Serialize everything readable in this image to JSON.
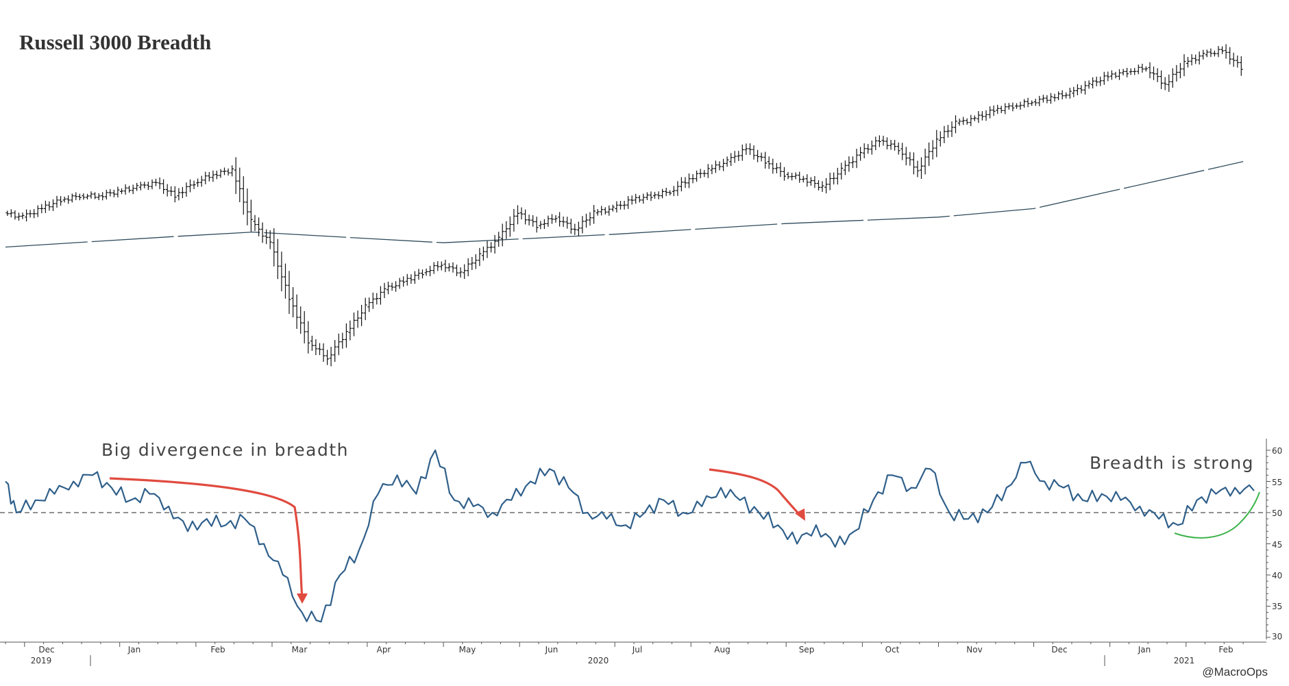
{
  "chart_data": [
    {
      "type": "line",
      "panel": "price",
      "title": "Russell 3000 Breadth",
      "series": [
        {
          "style": "ohlc-bars",
          "color": "#111111",
          "points": [
            [
              "2019-11-25",
              100
            ],
            [
              "2019-12-02",
              99
            ],
            [
              "2019-12-09",
              101
            ],
            [
              "2019-12-16",
              103
            ],
            [
              "2019-12-23",
              104
            ],
            [
              "2019-12-30",
              104
            ],
            [
              "2020-01-06",
              105
            ],
            [
              "2020-01-13",
              106
            ],
            [
              "2020-01-20",
              107
            ],
            [
              "2020-01-27",
              104
            ],
            [
              "2020-02-03",
              107
            ],
            [
              "2020-02-10",
              109
            ],
            [
              "2020-02-17",
              110
            ],
            [
              "2020-02-24",
              98
            ],
            [
              "2020-03-02",
              93
            ],
            [
              "2020-03-09",
              80
            ],
            [
              "2020-03-16",
              70
            ],
            [
              "2020-03-23",
              66
            ],
            [
              "2020-03-30",
              72
            ],
            [
              "2020-04-06",
              78
            ],
            [
              "2020-04-13",
              82
            ],
            [
              "2020-04-20",
              84
            ],
            [
              "2020-04-27",
              86
            ],
            [
              "2020-05-04",
              88
            ],
            [
              "2020-05-11",
              86
            ],
            [
              "2020-05-18",
              90
            ],
            [
              "2020-05-25",
              94
            ],
            [
              "2020-06-01",
              100
            ],
            [
              "2020-06-08",
              97
            ],
            [
              "2020-06-15",
              99
            ],
            [
              "2020-06-22",
              96
            ],
            [
              "2020-06-29",
              100
            ],
            [
              "2020-07-06",
              101
            ],
            [
              "2020-07-13",
              103
            ],
            [
              "2020-07-20",
              104
            ],
            [
              "2020-07-27",
              105
            ],
            [
              "2020-08-03",
              108
            ],
            [
              "2020-08-10",
              110
            ],
            [
              "2020-08-17",
              112
            ],
            [
              "2020-08-24",
              115
            ],
            [
              "2020-08-31",
              112
            ],
            [
              "2020-09-07",
              109
            ],
            [
              "2020-09-14",
              108
            ],
            [
              "2020-09-21",
              106
            ],
            [
              "2020-09-28",
              110
            ],
            [
              "2020-10-05",
              114
            ],
            [
              "2020-10-12",
              117
            ],
            [
              "2020-10-19",
              115
            ],
            [
              "2020-10-26",
              110
            ],
            [
              "2020-11-02",
              117
            ],
            [
              "2020-11-09",
              121
            ],
            [
              "2020-11-16",
              122
            ],
            [
              "2020-11-23",
              124
            ],
            [
              "2020-11-30",
              125
            ],
            [
              "2020-12-07",
              126
            ],
            [
              "2020-12-14",
              127
            ],
            [
              "2020-12-21",
              128
            ],
            [
              "2020-12-28",
              130
            ],
            [
              "2021-01-04",
              132
            ],
            [
              "2021-01-11",
              133
            ],
            [
              "2021-01-18",
              134
            ],
            [
              "2021-01-25",
              130
            ],
            [
              "2021-02-01",
              135
            ],
            [
              "2021-02-08",
              137
            ],
            [
              "2021-02-15",
              138
            ],
            [
              "2021-02-22",
              134
            ]
          ]
        },
        {
          "style": "dashed-moving-average",
          "color": "#2d4a5a",
          "points": [
            [
              "2019-11-25",
              92
            ],
            [
              "2020-01-27",
              94.5
            ],
            [
              "2020-02-24",
              95.5
            ],
            [
              "2020-04-06",
              94
            ],
            [
              "2020-05-04",
              93
            ],
            [
              "2020-07-06",
              95
            ],
            [
              "2020-09-07",
              97.5
            ],
            [
              "2020-11-02",
              99
            ],
            [
              "2020-12-07",
              101
            ],
            [
              "2021-01-04",
              105
            ],
            [
              "2021-02-22",
              112
            ]
          ]
        }
      ]
    },
    {
      "type": "line",
      "panel": "breadth",
      "ylim": [
        30,
        61
      ],
      "yticks": [
        "60",
        "55",
        "50",
        "45",
        "40",
        "35",
        "30"
      ],
      "reference_line": {
        "value": 50,
        "style": "dashed"
      },
      "series": [
        {
          "color": "#2f5f8a",
          "points": [
            [
              "2019-11-25",
              55
            ],
            [
              "2019-11-29",
              50
            ],
            [
              "2019-12-06",
              52
            ],
            [
              "2019-12-13",
              53
            ],
            [
              "2019-12-20",
              55
            ],
            [
              "2019-12-27",
              56
            ],
            [
              "2020-01-03",
              54
            ],
            [
              "2020-01-10",
              52
            ],
            [
              "2020-01-17",
              53
            ],
            [
              "2020-01-24",
              51
            ],
            [
              "2020-01-31",
              47
            ],
            [
              "2020-02-07",
              49
            ],
            [
              "2020-02-14",
              48
            ],
            [
              "2020-02-21",
              49
            ],
            [
              "2020-02-28",
              45
            ],
            [
              "2020-03-06",
              40
            ],
            [
              "2020-03-13",
              34
            ],
            [
              "2020-03-20",
              32.5
            ],
            [
              "2020-03-27",
              40
            ],
            [
              "2020-04-03",
              44
            ],
            [
              "2020-04-10",
              53
            ],
            [
              "2020-04-17",
              56
            ],
            [
              "2020-04-24",
              53
            ],
            [
              "2020-05-01",
              60
            ],
            [
              "2020-05-08",
              52
            ],
            [
              "2020-05-15",
              51
            ],
            [
              "2020-05-22",
              50
            ],
            [
              "2020-05-29",
              52
            ],
            [
              "2020-06-05",
              55
            ],
            [
              "2020-06-12",
              57
            ],
            [
              "2020-06-19",
              54
            ],
            [
              "2020-06-26",
              50
            ],
            [
              "2020-07-03",
              49
            ],
            [
              "2020-07-10",
              48
            ],
            [
              "2020-07-17",
              50
            ],
            [
              "2020-07-24",
              52
            ],
            [
              "2020-07-31",
              50
            ],
            [
              "2020-08-07",
              51
            ],
            [
              "2020-08-14",
              54
            ],
            [
              "2020-08-21",
              52
            ],
            [
              "2020-08-28",
              50
            ],
            [
              "2020-09-04",
              48
            ],
            [
              "2020-09-11",
              45
            ],
            [
              "2020-09-18",
              48
            ],
            [
              "2020-09-25",
              44.5
            ],
            [
              "2020-10-02",
              47
            ],
            [
              "2020-10-09",
              52
            ],
            [
              "2020-10-16",
              56
            ],
            [
              "2020-10-23",
              54
            ],
            [
              "2020-10-30",
              57
            ],
            [
              "2020-11-06",
              50
            ],
            [
              "2020-11-13",
              49
            ],
            [
              "2020-11-20",
              50
            ],
            [
              "2020-11-27",
              54
            ],
            [
              "2020-12-04",
              58
            ],
            [
              "2020-12-11",
              55
            ],
            [
              "2020-12-18",
              54
            ],
            [
              "2020-12-25",
              52
            ],
            [
              "2021-01-01",
              53
            ],
            [
              "2021-01-08",
              52
            ],
            [
              "2021-01-15",
              51
            ],
            [
              "2021-01-22",
              49
            ],
            [
              "2021-01-29",
              48
            ],
            [
              "2021-02-05",
              52
            ],
            [
              "2021-02-12",
              53
            ],
            [
              "2021-02-19",
              54
            ],
            [
              "2021-02-26",
              53.5
            ]
          ]
        }
      ],
      "annotations": [
        {
          "text": "Big divergence in breadth",
          "arrow_color": "#e04a3f"
        },
        {
          "text": "Breadth is strong",
          "curve_color": "#3db34a"
        }
      ]
    }
  ],
  "x_axis": {
    "months": [
      "Dec",
      "Jan",
      "Feb",
      "Mar",
      "Apr",
      "May",
      "Jun",
      "Jul",
      "Aug",
      "Sep",
      "Oct",
      "Nov",
      "Dec",
      "Jan",
      "Feb"
    ],
    "years": [
      "2019",
      "2020",
      "2021"
    ]
  },
  "credit": "@MacroOps"
}
